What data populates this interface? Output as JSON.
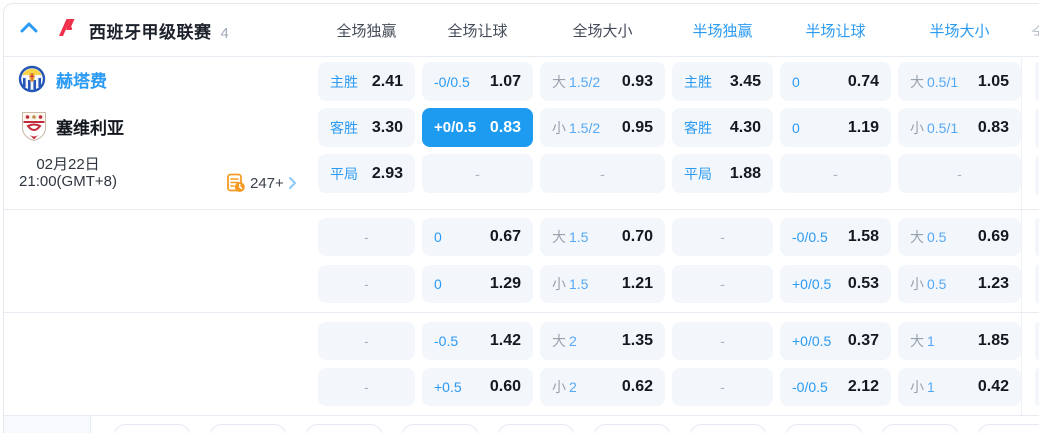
{
  "colors": {
    "accent": "#2b9af3",
    "selected_bg": "#1d9bf0",
    "cell_bg": "#f3f7fb",
    "laliga_red": "#f0304a",
    "stats_orange": "#f59b25"
  },
  "header": {
    "league": "西班牙甲级联赛",
    "match_count": "4",
    "columns": [
      "全场独赢",
      "全场让球",
      "全场大小",
      "半场独赢",
      "半场让球",
      "半场大小"
    ]
  },
  "match": {
    "home_team": "赫塔费",
    "away_team": "塞维利亚",
    "date": "02月22日",
    "time": "21:00(GMT+8)",
    "more_markets_count": "247+"
  },
  "icons": {
    "collapse": "chevron-up-icon",
    "league": "laliga-logo",
    "home": "getafe-crest",
    "away": "sevilla-crest",
    "markets": "stats-clock-icon",
    "more": "chevron-right-icon"
  },
  "sections": [
    {
      "rows": [
        {
          "cells": [
            {
              "kind": "win",
              "label": "主胜",
              "value": "2.41"
            },
            {
              "kind": "hcp",
              "label": "-0/0.5",
              "value": "1.07"
            },
            {
              "kind": "ou",
              "prefix": "大",
              "line": "1.5/2",
              "value": "0.93"
            },
            {
              "kind": "win",
              "label": "主胜",
              "value": "3.45"
            },
            {
              "kind": "hcp",
              "label": "0",
              "value": "0.74"
            },
            {
              "kind": "ou",
              "prefix": "大",
              "line": "0.5/1",
              "value": "1.05"
            }
          ]
        },
        {
          "cells": [
            {
              "kind": "win",
              "label": "客胜",
              "value": "3.30"
            },
            {
              "kind": "hcp",
              "label": "+0/0.5",
              "value": "0.83",
              "selected": true
            },
            {
              "kind": "ou",
              "prefix": "小",
              "line": "1.5/2",
              "value": "0.95"
            },
            {
              "kind": "win",
              "label": "客胜",
              "value": "4.30"
            },
            {
              "kind": "hcp",
              "label": "0",
              "value": "1.19"
            },
            {
              "kind": "ou",
              "prefix": "小",
              "line": "0.5/1",
              "value": "0.83"
            }
          ]
        },
        {
          "cells": [
            {
              "kind": "win",
              "label": "平局",
              "value": "2.93"
            },
            {
              "kind": "empty",
              "value": "-"
            },
            {
              "kind": "empty",
              "value": "-"
            },
            {
              "kind": "win",
              "label": "平局",
              "value": "1.88"
            },
            {
              "kind": "empty",
              "value": "-"
            },
            {
              "kind": "empty",
              "value": "-"
            }
          ]
        }
      ]
    },
    {
      "rows": [
        {
          "cells": [
            {
              "kind": "empty",
              "value": "-"
            },
            {
              "kind": "hcp",
              "label": "0",
              "value": "0.67"
            },
            {
              "kind": "ou",
              "prefix": "大",
              "line": "1.5",
              "value": "0.70"
            },
            {
              "kind": "empty",
              "value": "-"
            },
            {
              "kind": "hcp",
              "label": "-0/0.5",
              "value": "1.58"
            },
            {
              "kind": "ou",
              "prefix": "大",
              "line": "0.5",
              "value": "0.69"
            }
          ]
        },
        {
          "cells": [
            {
              "kind": "empty",
              "value": "-"
            },
            {
              "kind": "hcp",
              "label": "0",
              "value": "1.29"
            },
            {
              "kind": "ou",
              "prefix": "小",
              "line": "1.5",
              "value": "1.21"
            },
            {
              "kind": "empty",
              "value": "-"
            },
            {
              "kind": "hcp",
              "label": "+0/0.5",
              "value": "0.53"
            },
            {
              "kind": "ou",
              "prefix": "小",
              "line": "0.5",
              "value": "1.23"
            }
          ]
        }
      ]
    },
    {
      "rows": [
        {
          "cells": [
            {
              "kind": "empty",
              "value": "-"
            },
            {
              "kind": "hcp",
              "label": "-0.5",
              "value": "1.42"
            },
            {
              "kind": "ou",
              "prefix": "大",
              "line": "2",
              "value": "1.35"
            },
            {
              "kind": "empty",
              "value": "-"
            },
            {
              "kind": "hcp",
              "label": "+0/0.5",
              "value": "0.37"
            },
            {
              "kind": "ou",
              "prefix": "大",
              "line": "1",
              "value": "1.85"
            }
          ]
        },
        {
          "cells": [
            {
              "kind": "empty",
              "value": "-"
            },
            {
              "kind": "hcp",
              "label": "+0.5",
              "value": "0.60"
            },
            {
              "kind": "ou",
              "prefix": "小",
              "line": "2",
              "value": "0.62"
            },
            {
              "kind": "empty",
              "value": "-"
            },
            {
              "kind": "hcp",
              "label": "-0/0.5",
              "value": "2.12"
            },
            {
              "kind": "ou",
              "prefix": "小",
              "line": "1",
              "value": "0.42"
            }
          ]
        }
      ]
    }
  ],
  "footer": {
    "pill_count": 10
  }
}
